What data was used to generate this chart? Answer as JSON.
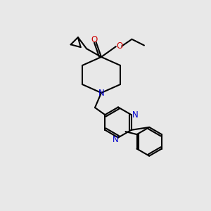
{
  "bg_color": "#e8e8e8",
  "bond_color": "#000000",
  "N_color": "#0000cc",
  "O_color": "#cc0000",
  "line_width": 1.5,
  "figsize": [
    3.0,
    3.0
  ],
  "dpi": 100,
  "xlim": [
    0,
    10
  ],
  "ylim": [
    0,
    10
  ]
}
